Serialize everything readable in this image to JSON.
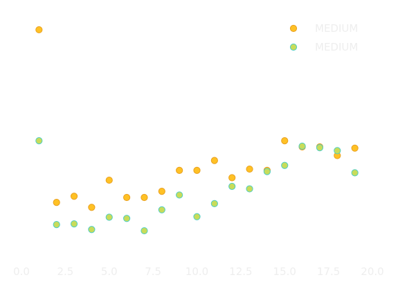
{
  "chart_data": {
    "type": "scatter",
    "title": "",
    "xlabel": "",
    "ylabel": "",
    "xlim": [
      0,
      20
    ],
    "ylim": [
      0,
      1
    ],
    "xticks": [
      0,
      2.5,
      5,
      7.5,
      10,
      12.5,
      15,
      17.5,
      20
    ],
    "xtick_labels": [
      "0.0",
      "2.5",
      "5.0",
      "7.5",
      "10.0",
      "12.5",
      "15.0",
      "17.5",
      "20.0"
    ],
    "grid": false,
    "legend_position": "top-right",
    "colors": {
      "series_a_fill": "#FFC125",
      "series_a_edge": "#E8A020",
      "series_b_fill": "#C8DC5A",
      "series_b_edge": "#4ECDC4",
      "text": "#eeeeee"
    },
    "series": [
      {
        "name": "MEDIUM",
        "x": [
          1,
          2,
          3,
          4,
          5,
          6,
          7,
          8,
          9,
          10,
          11,
          12,
          13,
          14,
          15,
          16,
          17,
          18,
          19
        ],
        "y": [
          0.93,
          0.23,
          0.255,
          0.21,
          0.32,
          0.25,
          0.25,
          0.275,
          0.36,
          0.36,
          0.4,
          0.33,
          0.365,
          0.36,
          0.48,
          0.455,
          0.455,
          0.42,
          0.45
        ]
      },
      {
        "name": "MEDIUM",
        "x": [
          1,
          2,
          3,
          4,
          5,
          6,
          7,
          8,
          9,
          10,
          11,
          12,
          13,
          14,
          15,
          16,
          17,
          18,
          19
        ],
        "y": [
          0.48,
          0.14,
          0.143,
          0.12,
          0.17,
          0.165,
          0.115,
          0.2,
          0.26,
          0.172,
          0.225,
          0.295,
          0.285,
          0.355,
          0.38,
          0.458,
          0.452,
          0.44,
          0.35
        ]
      }
    ]
  }
}
